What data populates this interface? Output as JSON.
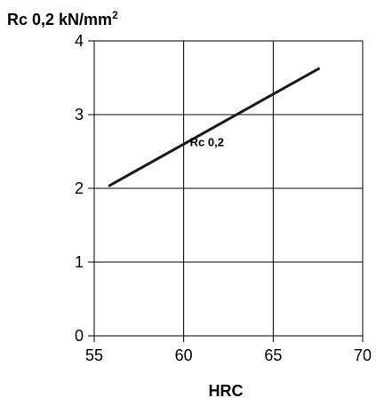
{
  "chart_data": {
    "type": "line",
    "title": "",
    "ylabel": "Rc 0,2 kN/mm",
    "ylabel_superscript": "2",
    "xlabel": "HRC",
    "xlim": [
      55,
      70
    ],
    "ylim": [
      0,
      4
    ],
    "x_ticks": [
      "55",
      "60",
      "65",
      "70"
    ],
    "y_ticks": [
      "0",
      "1",
      "2",
      "3",
      "4"
    ],
    "x_tick_values": [
      55,
      60,
      65,
      70
    ],
    "y_tick_values": [
      0,
      1,
      2,
      3,
      4
    ],
    "grid": true,
    "series": [
      {
        "name": "Rc 0,2",
        "x": [
          55.8,
          67.6
        ],
        "y": [
          2.03,
          3.63
        ]
      }
    ],
    "annotations": [
      {
        "text": "Rc 0,2",
        "x": 61.3,
        "y": 2.57
      }
    ],
    "colors": {
      "line": "#1a1a1a",
      "grid": "#000000",
      "text": "#000000"
    }
  }
}
